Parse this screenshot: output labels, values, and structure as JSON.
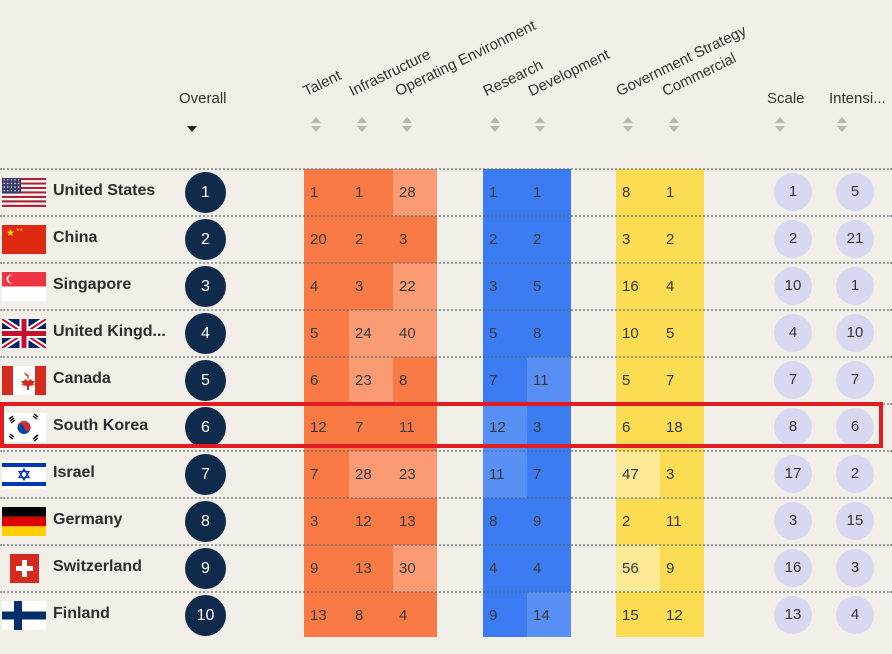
{
  "headers": {
    "overall": "Overall",
    "talent": "Talent",
    "infrastructure": "Infrastructure",
    "operating_environment": "Operating Environment",
    "research": "Research",
    "development": "Development",
    "government_strategy": "Government Strategy",
    "commercial": "Commercial",
    "scale": "Scale",
    "intensity": "Intensi..."
  },
  "sort": {
    "active_column": "overall",
    "direction": "descending-icon"
  },
  "band_colors": {
    "orange": "#f97a45",
    "blue": "#3b7cf3",
    "yellow": "#fbdc52",
    "bubble": "#d9d8f2",
    "rank": "#0f2a4a",
    "highlight": "#e31b23"
  },
  "highlighted_row": "South Korea",
  "rows": [
    {
      "country": "United States",
      "overall": "1",
      "talent": "1",
      "infrastructure": "1",
      "operating_environment": "28",
      "research": "1",
      "development": "1",
      "government_strategy": "8",
      "commercial": "1",
      "scale": "1",
      "intensity": "5",
      "flag": "us-flag-icon"
    },
    {
      "country": "China",
      "overall": "2",
      "talent": "20",
      "infrastructure": "2",
      "operating_environment": "3",
      "research": "2",
      "development": "2",
      "government_strategy": "3",
      "commercial": "2",
      "scale": "2",
      "intensity": "21",
      "flag": "china-flag-icon"
    },
    {
      "country": "Singapore",
      "overall": "3",
      "talent": "4",
      "infrastructure": "3",
      "operating_environment": "22",
      "research": "3",
      "development": "5",
      "government_strategy": "16",
      "commercial": "4",
      "scale": "10",
      "intensity": "1",
      "flag": "singapore-flag-icon"
    },
    {
      "country": "United Kingd...",
      "overall": "4",
      "talent": "5",
      "infrastructure": "24",
      "operating_environment": "40",
      "research": "5",
      "development": "8",
      "government_strategy": "10",
      "commercial": "5",
      "scale": "4",
      "intensity": "10",
      "flag": "uk-flag-icon"
    },
    {
      "country": "Canada",
      "overall": "5",
      "talent": "6",
      "infrastructure": "23",
      "operating_environment": "8",
      "research": "7",
      "development": "11",
      "government_strategy": "5",
      "commercial": "7",
      "scale": "7",
      "intensity": "7",
      "flag": "canada-flag-icon"
    },
    {
      "country": "South Korea",
      "overall": "6",
      "talent": "12",
      "infrastructure": "7",
      "operating_environment": "11",
      "research": "12",
      "development": "3",
      "government_strategy": "6",
      "commercial": "18",
      "scale": "8",
      "intensity": "6",
      "flag": "south-korea-flag-icon"
    },
    {
      "country": "Israel",
      "overall": "7",
      "talent": "7",
      "infrastructure": "28",
      "operating_environment": "23",
      "research": "11",
      "development": "7",
      "government_strategy": "47",
      "commercial": "3",
      "scale": "17",
      "intensity": "2",
      "flag": "israel-flag-icon"
    },
    {
      "country": "Germany",
      "overall": "8",
      "talent": "3",
      "infrastructure": "12",
      "operating_environment": "13",
      "research": "8",
      "development": "9",
      "government_strategy": "2",
      "commercial": "11",
      "scale": "3",
      "intensity": "15",
      "flag": "germany-flag-icon"
    },
    {
      "country": "Switzerland",
      "overall": "9",
      "talent": "9",
      "infrastructure": "13",
      "operating_environment": "30",
      "research": "4",
      "development": "4",
      "government_strategy": "56",
      "commercial": "9",
      "scale": "16",
      "intensity": "3",
      "flag": "switzerland-flag-icon"
    },
    {
      "country": "Finland",
      "overall": "10",
      "talent": "13",
      "infrastructure": "8",
      "operating_environment": "4",
      "research": "9",
      "development": "14",
      "government_strategy": "15",
      "commercial": "12",
      "scale": "13",
      "intensity": "4",
      "flag": "finland-flag-icon"
    }
  ]
}
